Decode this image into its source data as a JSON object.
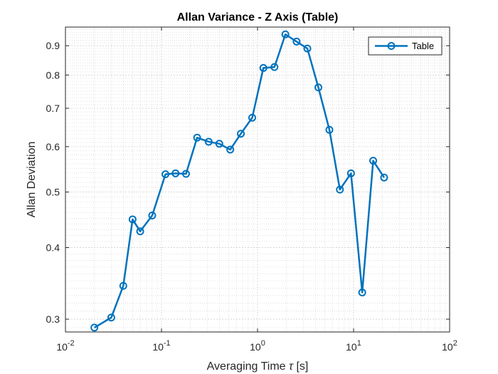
{
  "chart_data": {
    "type": "line",
    "title": "Allan Variance - Z Axis (Table)",
    "xlabel_prefix": "Averaging Time",
    "xlabel_symbol": "τ",
    "xlabel_suffix": "[s]",
    "ylabel": "Allan Deviation",
    "x_scale": "log",
    "y_scale": "log",
    "xlim": [
      0.01,
      100
    ],
    "ylim": [
      0.285,
      0.97
    ],
    "grid": true,
    "minor_grid": true,
    "legend_position": "top-right",
    "x_ticks": [
      {
        "value": 0.01,
        "base": "10",
        "exp": "-2"
      },
      {
        "value": 0.1,
        "base": "10",
        "exp": "-1"
      },
      {
        "value": 1,
        "base": "10",
        "exp": "0"
      },
      {
        "value": 10,
        "base": "10",
        "exp": "1"
      },
      {
        "value": 100,
        "base": "10",
        "exp": "2"
      }
    ],
    "y_ticks": [
      {
        "value": 0.3,
        "label": "0.3"
      },
      {
        "value": 0.4,
        "label": "0.4"
      },
      {
        "value": 0.5,
        "label": "0.5"
      },
      {
        "value": 0.6,
        "label": "0.6"
      },
      {
        "value": 0.7,
        "label": "0.7"
      },
      {
        "value": 0.8,
        "label": "0.8"
      },
      {
        "value": 0.9,
        "label": "0.9"
      }
    ],
    "series": [
      {
        "name": "Table",
        "color": "#0072bd",
        "marker": "circle",
        "x": [
          0.02,
          0.03,
          0.04,
          0.05,
          0.06,
          0.08,
          0.11,
          0.14,
          0.18,
          0.235,
          0.31,
          0.4,
          0.52,
          0.67,
          0.88,
          1.15,
          1.5,
          1.95,
          2.55,
          3.3,
          4.3,
          5.6,
          7.2,
          9.4,
          12.3,
          16.0,
          20.8
        ],
        "y": [
          0.29,
          0.302,
          0.343,
          0.448,
          0.427,
          0.455,
          0.537,
          0.539,
          0.538,
          0.622,
          0.612,
          0.607,
          0.593,
          0.632,
          0.674,
          0.823,
          0.826,
          0.942,
          0.915,
          0.89,
          0.761,
          0.642,
          0.505,
          0.539,
          0.334,
          0.567,
          0.53
        ]
      }
    ]
  }
}
